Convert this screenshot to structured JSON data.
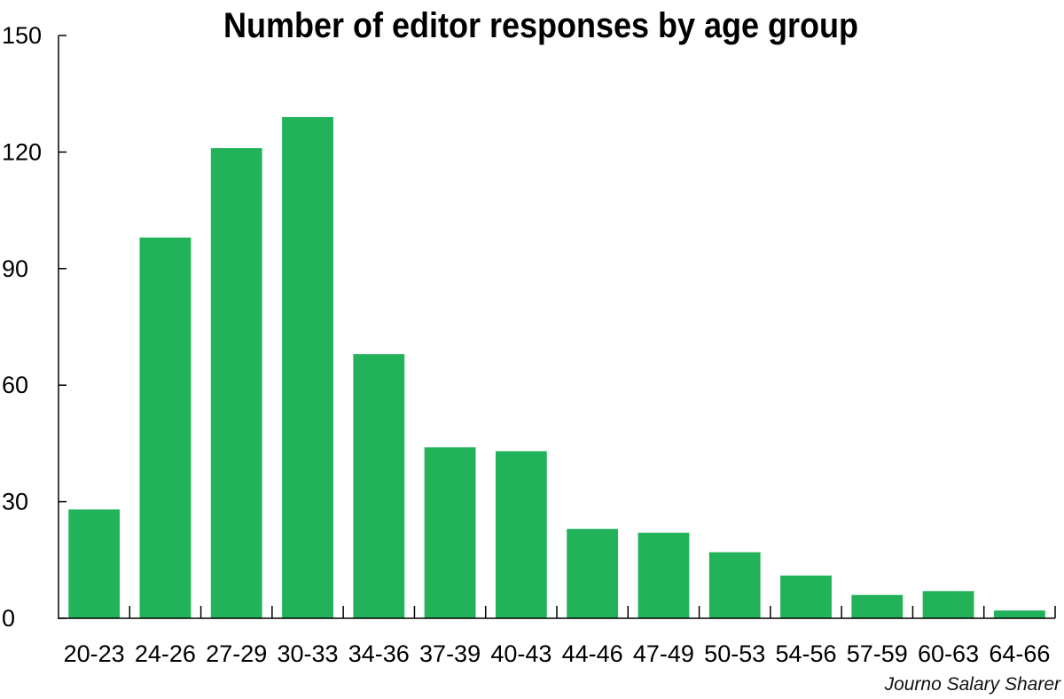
{
  "chart_data": {
    "type": "bar",
    "title": "Number of editor responses by age group",
    "xlabel": "",
    "ylabel": "",
    "categories": [
      "20-23",
      "24-26",
      "27-29",
      "30-33",
      "34-36",
      "37-39",
      "40-43",
      "44-46",
      "47-49",
      "50-53",
      "54-56",
      "57-59",
      "60-63",
      "64-66"
    ],
    "values": [
      28,
      98,
      121,
      129,
      68,
      44,
      43,
      23,
      22,
      17,
      11,
      6,
      7,
      2
    ],
    "ylim": [
      0,
      150
    ],
    "yticks": [
      0,
      30,
      60,
      90,
      120,
      150
    ],
    "grid": false,
    "legend": "none",
    "bar_color": "#21b25a",
    "axis_color": "#000000",
    "source": "Journo Salary Sharer"
  }
}
